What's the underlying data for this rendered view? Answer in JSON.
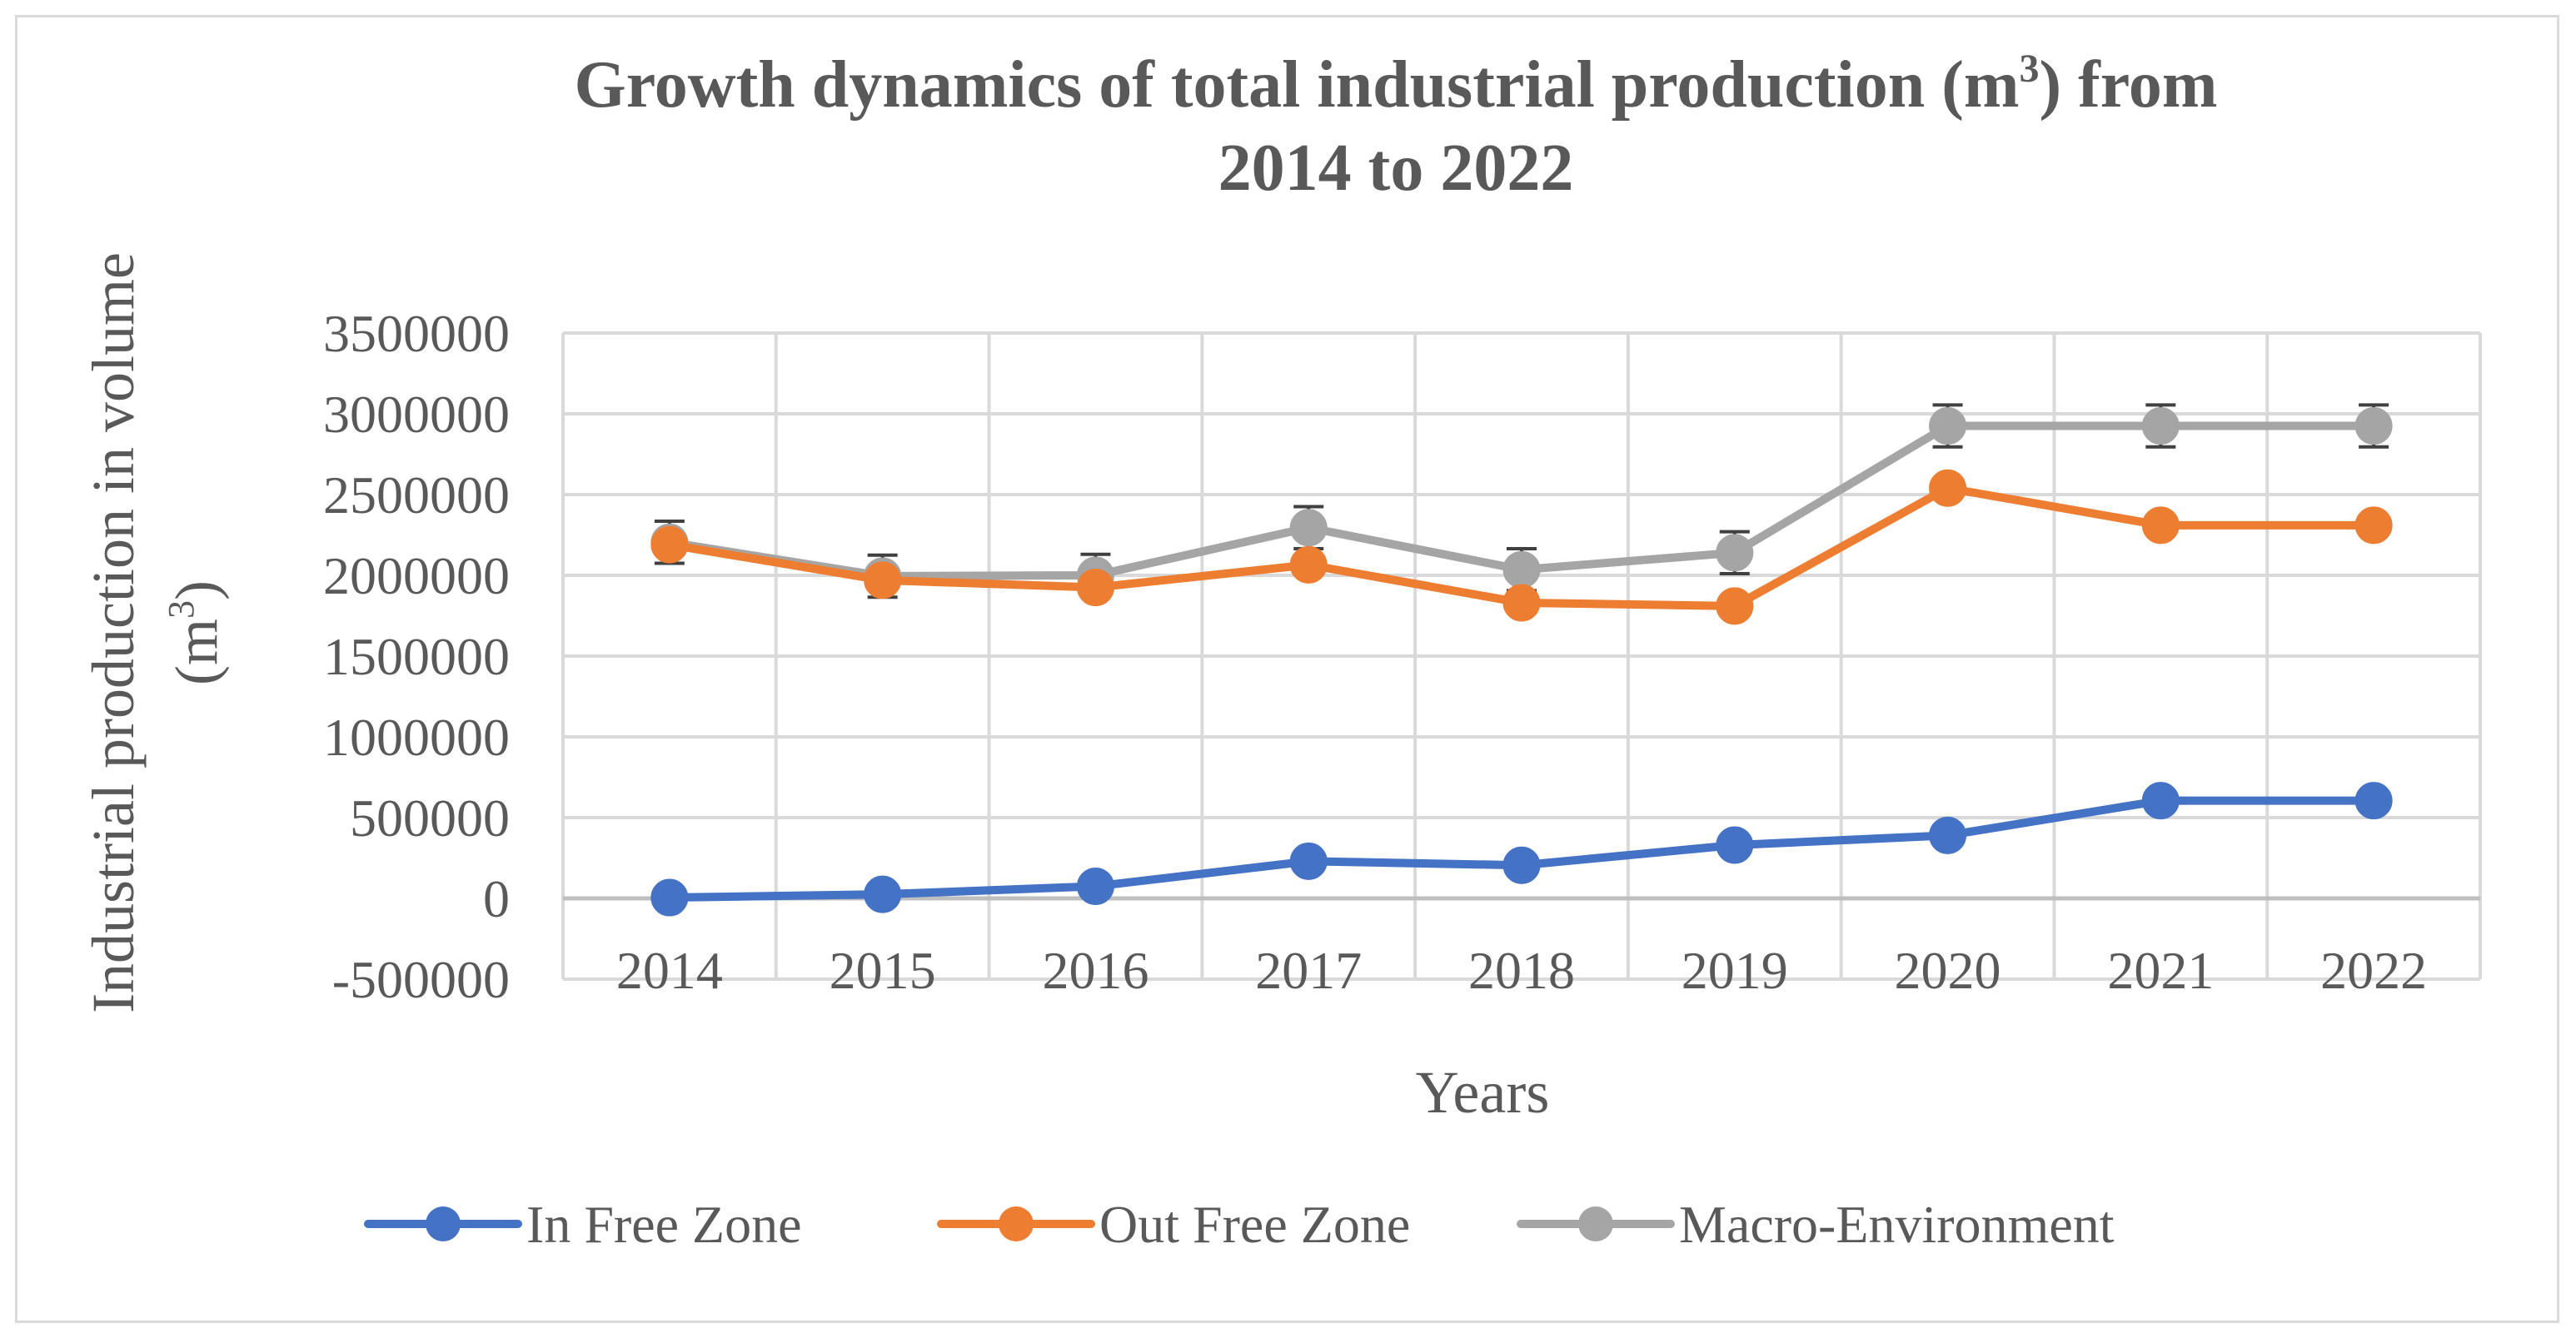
{
  "chart_data": {
    "type": "line",
    "title_main": "Growth dynamics of total industrial production (m",
    "title_sup": "3",
    "title_rest": ") from",
    "title_line2": "2014 to 2022",
    "xlabel": "Years",
    "ylabel_line1": "Industrial production in volume",
    "ylabel_line2_pre": "(m",
    "ylabel_line2_sup": "3",
    "ylabel_line2_post": ")",
    "categories": [
      "2014",
      "2015",
      "2016",
      "2017",
      "2018",
      "2019",
      "2020",
      "2021",
      "2022"
    ],
    "y_ticks": [
      "3500000",
      "3000000",
      "2500000",
      "2000000",
      "1500000",
      "1000000",
      "500000",
      "0",
      "-500000"
    ],
    "ylim": [
      -500000,
      3500000
    ],
    "grid": true,
    "legend_position": "bottom",
    "series": [
      {
        "name": "In Free Zone",
        "color": "#4472c4",
        "error_bars": false,
        "values": [
          5000,
          25000,
          75000,
          230000,
          205000,
          330000,
          390000,
          605000,
          605000
        ]
      },
      {
        "name": "Out Free Zone",
        "color": "#ed7d31",
        "error_bars": false,
        "values": [
          2190000,
          1970000,
          1925000,
          2065000,
          1830000,
          1810000,
          2540000,
          2310000,
          2310000
        ]
      },
      {
        "name": "Macro-Environment",
        "color": "#a5a5a5",
        "error_bars": true,
        "error_value": 130000,
        "values": [
          2205000,
          1995000,
          2000000,
          2295000,
          2035000,
          2140000,
          2925000,
          2925000,
          2925000
        ]
      }
    ]
  }
}
